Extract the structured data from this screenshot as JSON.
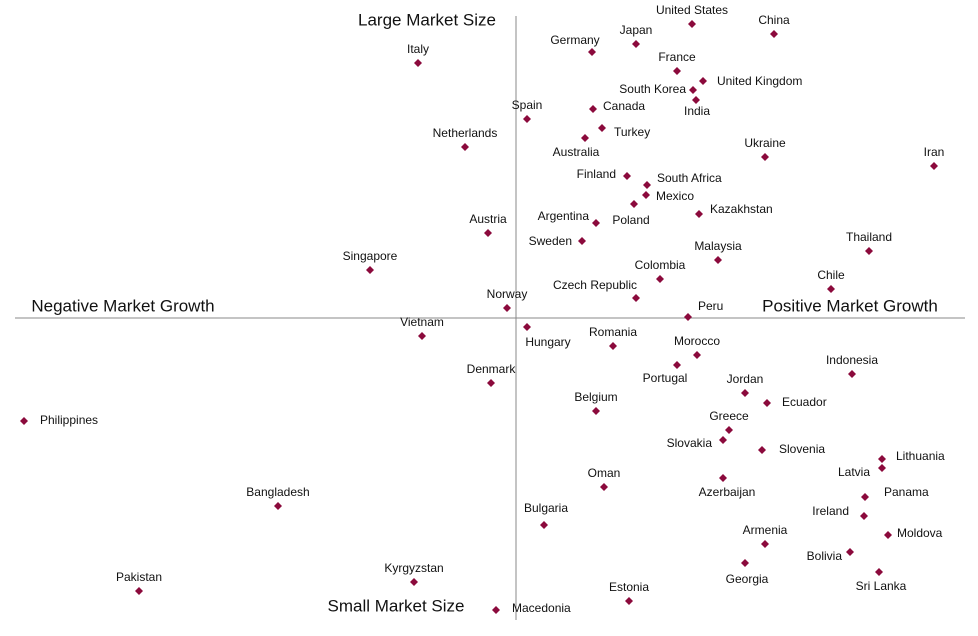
{
  "chart_data": {
    "type": "scatter",
    "annotations": [
      "Large Market Size",
      "Small Market Size",
      "Negative Market Growth",
      "Positive Market Growth"
    ],
    "xlim": [
      -501,
      449
    ],
    "ylim": [
      -302,
      302
    ],
    "color": "#8b0a3c",
    "labels": [
      "United States",
      "China",
      "Japan",
      "Germany",
      "Italy",
      "France",
      "United Kingdom",
      "South Korea",
      "India",
      "Canada",
      "Spain",
      "Turkey",
      "Australia",
      "Netherlands",
      "Ukraine",
      "Iran",
      "Finland",
      "South Africa",
      "Mexico",
      "Poland",
      "Kazakhstan",
      "Argentina",
      "Austria",
      "Sweden",
      "Thailand",
      "Malaysia",
      "Singapore",
      "Colombia",
      "Chile",
      "Czech Republic",
      "Norway",
      "Peru",
      "Vietnam",
      "Hungary",
      "Romania",
      "Morocco",
      "Portugal",
      "Indonesia",
      "Denmark",
      "Jordan",
      "Ecuador",
      "Belgium",
      "Philippines",
      "Greece",
      "Slovakia",
      "Slovenia",
      "Lithuania",
      "Latvia",
      "Azerbaijan",
      "Oman",
      "Panama",
      "Bangladesh",
      "Ireland",
      "Bulgaria",
      "Moldova",
      "Armenia",
      "Bolivia",
      "Georgia",
      "Sri Lanka",
      "Kyrgyzstan",
      "Pakistan",
      "Estonia",
      "Macedonia"
    ],
    "x": [
      176,
      258,
      120,
      76,
      -98,
      161,
      187,
      177,
      180,
      77,
      11,
      86,
      69,
      -51,
      249,
      418,
      111,
      131,
      130,
      118,
      183,
      80,
      -28,
      66,
      353,
      202,
      -146,
      144,
      315,
      120,
      -9,
      172,
      -94,
      11,
      97,
      181,
      161,
      336,
      -25,
      229,
      251,
      80,
      -492,
      213,
      207,
      246,
      366,
      366,
      207,
      88,
      349,
      -238,
      348,
      28,
      372,
      249,
      334,
      229,
      363,
      -102,
      -377,
      113,
      -20
    ],
    "y": [
      294,
      284,
      274,
      266,
      255,
      247,
      237,
      228,
      218,
      209,
      199,
      190,
      180,
      171,
      161,
      152,
      142,
      133,
      123,
      114,
      104,
      95,
      85,
      77,
      67,
      58,
      48,
      39,
      29,
      20,
      10,
      1,
      -18,
      -9,
      -28,
      -37,
      -47,
      -56,
      -65,
      -75,
      -85,
      -93,
      -103,
      -112,
      -122,
      -132,
      -141,
      -150,
      -160,
      -169,
      -179,
      -188,
      -198,
      -207,
      -217,
      -226,
      -234,
      -245,
      -254,
      -264,
      -273,
      -283,
      -292
    ]
  }
}
